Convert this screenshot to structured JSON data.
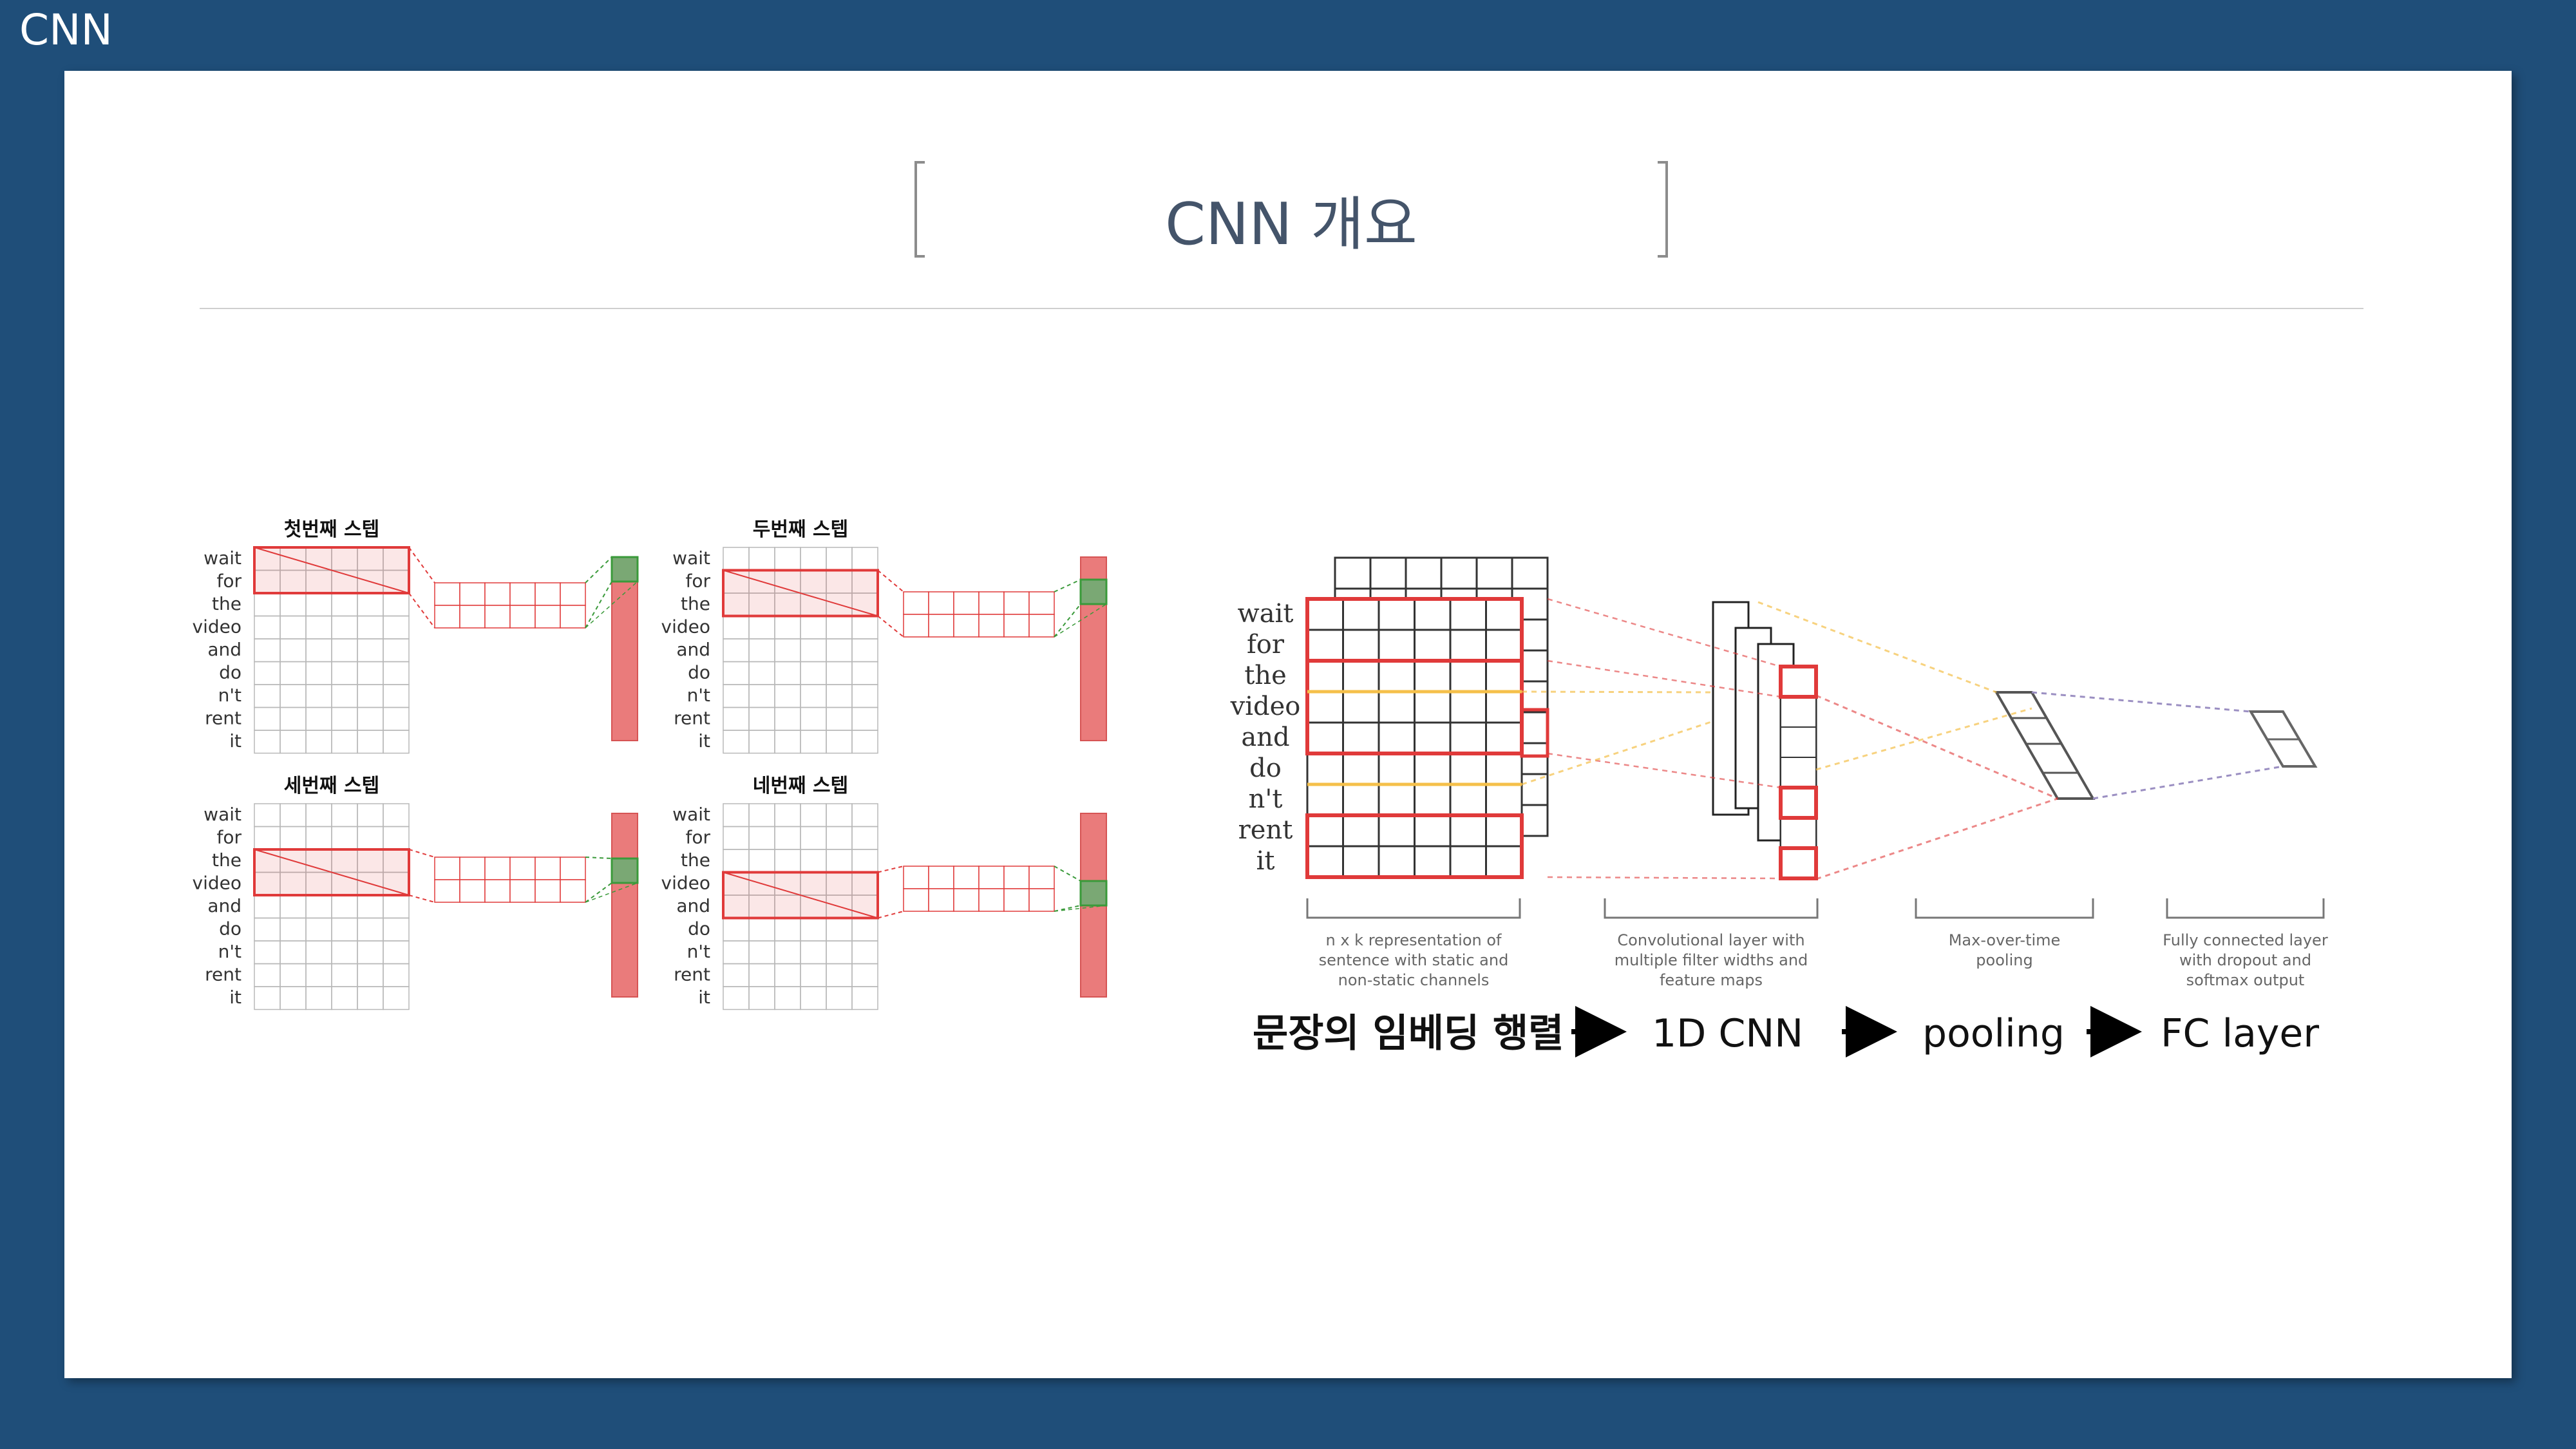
{
  "header": {
    "section_label": "CNN"
  },
  "slide": {
    "title": "CNN 개요"
  },
  "steps": [
    {
      "title": "첫번째 스텝",
      "highlight_row": 0
    },
    {
      "title": "두번째 스텝",
      "highlight_row": 1
    },
    {
      "title": "세번째 스텝",
      "highlight_row": 2
    },
    {
      "title": "네번째 스텝",
      "highlight_row": 3
    }
  ],
  "words": [
    "wait",
    "for",
    "the",
    "video",
    "and",
    "do",
    "n't",
    "rent",
    "it"
  ],
  "architecture": {
    "captions": [
      [
        "n x k representation of",
        "sentence with static and",
        "non-static channels"
      ],
      [
        "Convolutional layer with",
        "multiple filter widths and",
        "feature maps"
      ],
      [
        "Max-over-time",
        "pooling"
      ],
      [
        "Fully connected layer",
        "with dropout and",
        "softmax output"
      ]
    ]
  },
  "pipeline": {
    "stages": [
      "문장의 임베딩 행렬",
      "1D CNN",
      "pooling",
      "FC layer"
    ],
    "arrow": "→"
  },
  "colors": {
    "background": "#1f4e79",
    "red": "#e03a3a",
    "green": "#3a9a3a",
    "yellow": "#f5c04a",
    "purple": "#9b8fc2"
  }
}
